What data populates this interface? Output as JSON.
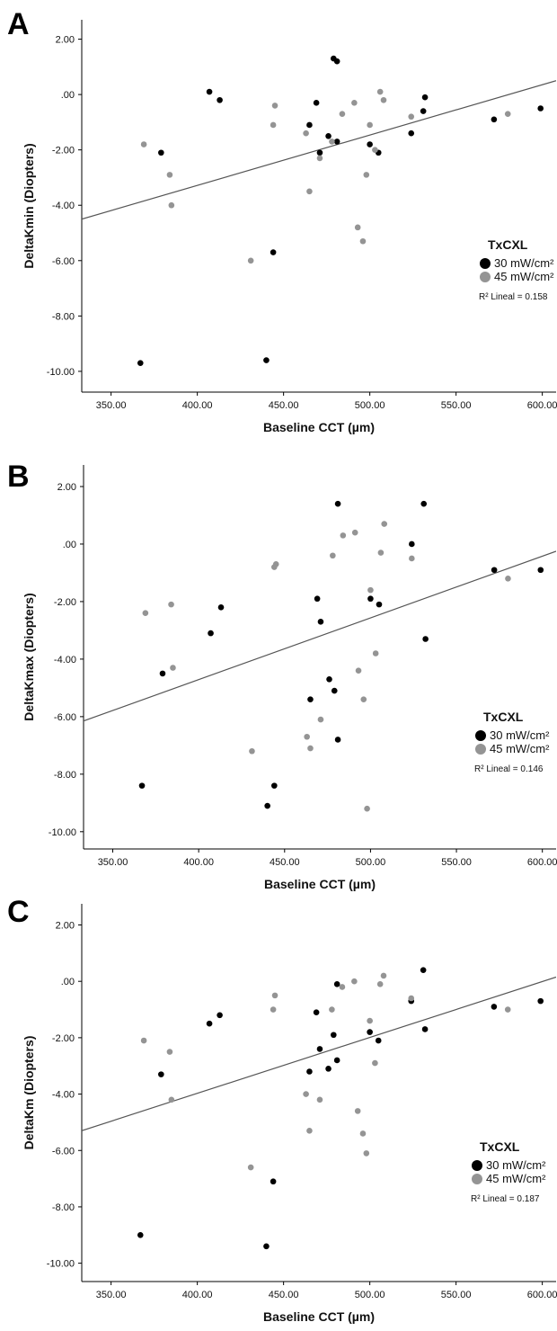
{
  "colors": {
    "series_30": "#000000",
    "series_45": "#949494",
    "fit_line": "#555555",
    "axis": "#000000"
  },
  "chart_data": [
    {
      "panel": "A",
      "type": "scatter",
      "xlabel": "Baseline CCT (µm)",
      "ylabel": "DeltaKmin (Diopters)",
      "xticks": [
        "350.00",
        "400.00",
        "450.00",
        "500.00",
        "550.00",
        "600.00"
      ],
      "yticks": [
        "2.00",
        ".00",
        "-2.00",
        "-4.00",
        "-6.00",
        "-8.00",
        "-10.00"
      ],
      "xlim": [
        333,
        608
      ],
      "ylim": [
        -10.75,
        2.7
      ],
      "legend": {
        "title": "TxCXL",
        "position": "right",
        "r2_label": "R² Lineal = 0.158"
      },
      "series": [
        {
          "name": "30 mW/cm²",
          "color": "#000000",
          "points": [
            [
              367,
              -9.7
            ],
            [
              379,
              -2.1
            ],
            [
              407,
              0.1
            ],
            [
              413,
              -0.2
            ],
            [
              440,
              -9.6
            ],
            [
              444,
              -5.7
            ],
            [
              465,
              -1.1
            ],
            [
              469,
              -0.3
            ],
            [
              471,
              -2.1
            ],
            [
              476,
              -1.5
            ],
            [
              479,
              1.3
            ],
            [
              481,
              1.2
            ],
            [
              481,
              -1.7
            ],
            [
              500,
              -1.8
            ],
            [
              505,
              -2.1
            ],
            [
              524,
              -1.4
            ],
            [
              531,
              -0.6
            ],
            [
              532,
              -0.1
            ],
            [
              572,
              -0.9
            ],
            [
              599,
              -0.5
            ]
          ]
        },
        {
          "name": "45 mW/cm²",
          "color": "#949494",
          "points": [
            [
              369,
              -1.8
            ],
            [
              384,
              -2.9
            ],
            [
              385,
              -4.0
            ],
            [
              431,
              -6.0
            ],
            [
              444,
              -1.1
            ],
            [
              445,
              -0.4
            ],
            [
              463,
              -1.4
            ],
            [
              465,
              -3.5
            ],
            [
              471,
              -2.3
            ],
            [
              478,
              -1.7
            ],
            [
              484,
              -0.7
            ],
            [
              491,
              -0.3
            ],
            [
              493,
              -4.8
            ],
            [
              496,
              -5.3
            ],
            [
              498,
              -2.9
            ],
            [
              500,
              -1.1
            ],
            [
              503,
              -2.0
            ],
            [
              506,
              0.1
            ],
            [
              508,
              -0.2
            ],
            [
              524,
              -0.8
            ],
            [
              580,
              -0.7
            ]
          ]
        }
      ],
      "fit_line": [
        [
          333,
          -4.5
        ],
        [
          608,
          0.5
        ]
      ]
    },
    {
      "panel": "B",
      "type": "scatter",
      "xlabel": "Baseline CCT (µm)",
      "ylabel": "DeltaKmax (Diopters)",
      "xticks": [
        "350.00",
        "400.00",
        "450.00",
        "500.00",
        "550.00",
        "600.00"
      ],
      "yticks": [
        "2.00",
        ".00",
        "-2.00",
        "-4.00",
        "-6.00",
        "-8.00",
        "-10.00"
      ],
      "xlim": [
        333,
        608
      ],
      "ylim": [
        -10.6,
        2.75
      ],
      "legend": {
        "title": "TxCXL",
        "position": "right",
        "r2_label": "R² Lineal = 0.146"
      },
      "series": [
        {
          "name": "30 mW/cm²",
          "color": "#000000",
          "points": [
            [
              367,
              -8.4
            ],
            [
              379,
              -4.5
            ],
            [
              407,
              -3.1
            ],
            [
              413,
              -2.2
            ],
            [
              440,
              -9.1
            ],
            [
              444,
              -8.4
            ],
            [
              465,
              -5.4
            ],
            [
              469,
              -1.9
            ],
            [
              471,
              -2.7
            ],
            [
              476,
              -4.7
            ],
            [
              479,
              -5.1
            ],
            [
              481,
              -6.8
            ],
            [
              481,
              1.4
            ],
            [
              500,
              -1.9
            ],
            [
              505,
              -2.1
            ],
            [
              524,
              0.0
            ],
            [
              531,
              1.4
            ],
            [
              532,
              -3.3
            ],
            [
              572,
              -0.9
            ],
            [
              599,
              -0.9
            ]
          ]
        },
        {
          "name": "45 mW/cm²",
          "color": "#949494",
          "points": [
            [
              369,
              -2.4
            ],
            [
              384,
              -2.1
            ],
            [
              385,
              -4.3
            ],
            [
              431,
              -7.2
            ],
            [
              444,
              -0.8
            ],
            [
              445,
              -0.7
            ],
            [
              463,
              -6.7
            ],
            [
              465,
              -7.1
            ],
            [
              471,
              -6.1
            ],
            [
              478,
              -0.4
            ],
            [
              484,
              0.3
            ],
            [
              491,
              0.4
            ],
            [
              493,
              -4.4
            ],
            [
              496,
              -5.4
            ],
            [
              498,
              -9.2
            ],
            [
              500,
              -1.6
            ],
            [
              503,
              -3.8
            ],
            [
              506,
              -0.3
            ],
            [
              508,
              0.7
            ],
            [
              524,
              -0.5
            ],
            [
              580,
              -1.2
            ]
          ]
        }
      ],
      "fit_line": [
        [
          333,
          -6.15
        ],
        [
          608,
          -0.25
        ]
      ]
    },
    {
      "panel": "C",
      "type": "scatter",
      "xlabel": "Baseline CCT (µm)",
      "ylabel": "DeltaKm (Diopters)",
      "xticks": [
        "350.00",
        "400.00",
        "450.00",
        "500.00",
        "550.00",
        "600.00"
      ],
      "yticks": [
        "2.00",
        ".00",
        "-2.00",
        "-4.00",
        "-6.00",
        "-8.00",
        "-10.00"
      ],
      "xlim": [
        333,
        608
      ],
      "ylim": [
        -10.65,
        2.75
      ],
      "legend": {
        "title": "TxCXL",
        "position": "right",
        "r2_label": "R² Lineal = 0.187"
      },
      "series": [
        {
          "name": "30 mW/cm²",
          "color": "#000000",
          "points": [
            [
              367,
              -9.0
            ],
            [
              379,
              -3.3
            ],
            [
              407,
              -1.5
            ],
            [
              413,
              -1.2
            ],
            [
              440,
              -9.4
            ],
            [
              444,
              -7.1
            ],
            [
              465,
              -3.2
            ],
            [
              469,
              -1.1
            ],
            [
              471,
              -2.4
            ],
            [
              476,
              -3.1
            ],
            [
              479,
              -1.9
            ],
            [
              481,
              -2.8
            ],
            [
              481,
              -0.1
            ],
            [
              500,
              -1.8
            ],
            [
              505,
              -2.1
            ],
            [
              524,
              -0.7
            ],
            [
              531,
              0.4
            ],
            [
              532,
              -1.7
            ],
            [
              572,
              -0.9
            ],
            [
              599,
              -0.7
            ]
          ]
        },
        {
          "name": "45 mW/cm²",
          "color": "#949494",
          "points": [
            [
              369,
              -2.1
            ],
            [
              384,
              -2.5
            ],
            [
              385,
              -4.2
            ],
            [
              431,
              -6.6
            ],
            [
              444,
              -1.0
            ],
            [
              445,
              -0.5
            ],
            [
              463,
              -4.0
            ],
            [
              465,
              -5.3
            ],
            [
              471,
              -4.2
            ],
            [
              478,
              -1.0
            ],
            [
              484,
              -0.2
            ],
            [
              491,
              0.0
            ],
            [
              493,
              -4.6
            ],
            [
              496,
              -5.4
            ],
            [
              498,
              -6.1
            ],
            [
              500,
              -1.4
            ],
            [
              503,
              -2.9
            ],
            [
              506,
              -0.1
            ],
            [
              508,
              0.2
            ],
            [
              524,
              -0.6
            ],
            [
              580,
              -1.0
            ]
          ]
        }
      ],
      "fit_line": [
        [
          333,
          -5.3
        ],
        [
          608,
          0.15
        ]
      ]
    }
  ]
}
